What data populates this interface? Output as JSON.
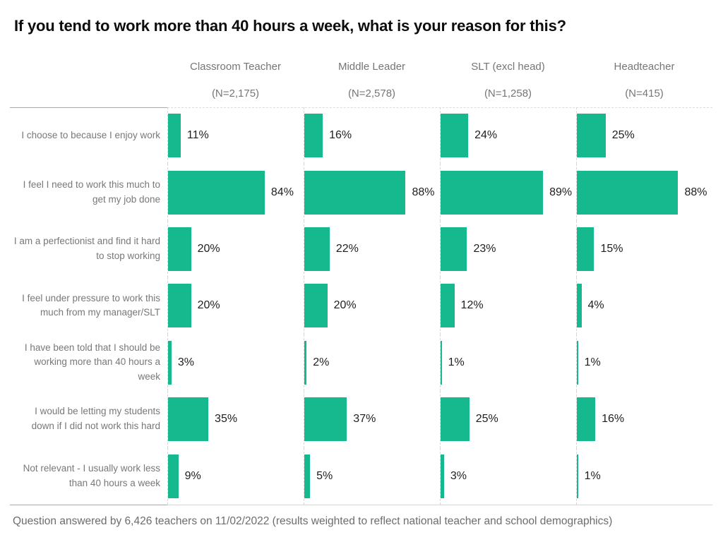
{
  "title": "If you tend to work more than 40 hours a week, what is your reason for this?",
  "footer": "Question answered by 6,426 teachers on 11/02/2022 (results weighted to reflect national teacher and school demographics)",
  "colors": {
    "bar": "#16b98d",
    "title_text": "#0d0d0d",
    "muted_text": "#767676",
    "value_text": "#1e1e1e",
    "axis_line": "#a9a9a9",
    "grid_line": "#d6d6d6"
  },
  "chart_data": {
    "type": "bar",
    "orientation": "horizontal",
    "title": "If you tend to work more than 40 hours a week, what is your reason for this?",
    "footer": "Question answered by 6,426 teachers on 11/02/2022 (results weighted to reflect national teacher and school demographics)",
    "value_suffix": "%",
    "xlim": [
      0,
      100
    ],
    "grid": "dashed-column-baselines",
    "legend_position": "column-headers-top",
    "categories": [
      "I choose to because I enjoy work",
      "I feel I need to work this much to get my job done",
      "I am a perfectionist and find it hard to stop working",
      "I feel under pressure to work this much from my manager/SLT",
      "I have been told that I should be working more than 40 hours a week",
      "I would be letting my students down if I did not work this hard",
      "Not relevant - I usually work less than 40 hours a week"
    ],
    "series": [
      {
        "name": "Classroom Teacher",
        "n_label": "(N=2,175)",
        "values": [
          11,
          84,
          20,
          20,
          3,
          35,
          9
        ]
      },
      {
        "name": "Middle Leader",
        "n_label": "(N=2,578)",
        "values": [
          16,
          88,
          22,
          20,
          2,
          37,
          5
        ]
      },
      {
        "name": "SLT (excl head)",
        "n_label": "(N=1,258)",
        "values": [
          24,
          89,
          23,
          12,
          1,
          25,
          3
        ]
      },
      {
        "name": "Headteacher",
        "n_label": "(N=415)",
        "values": [
          25,
          88,
          15,
          4,
          1,
          16,
          1
        ]
      }
    ]
  }
}
